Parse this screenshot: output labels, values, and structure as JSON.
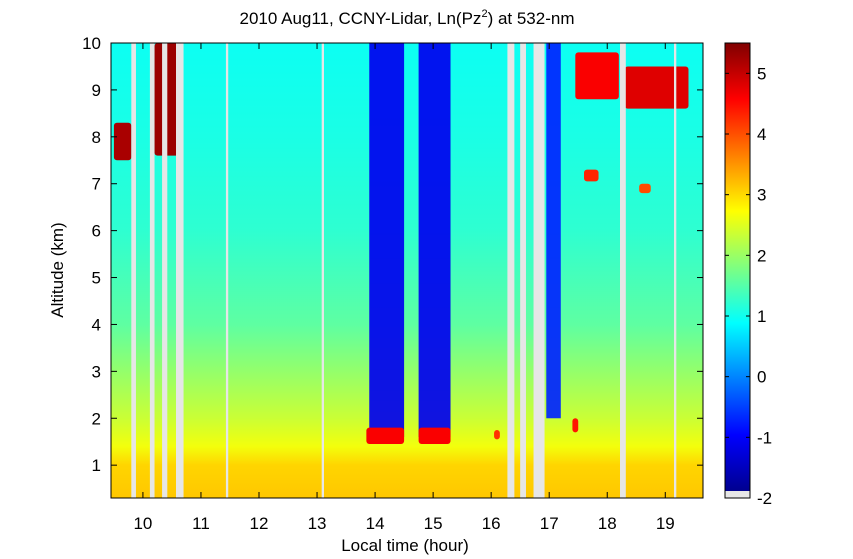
{
  "chart_data": {
    "type": "heatmap",
    "title_main": "2010 Aug11, CCNY-Lidar, Ln(Pz",
    "title_sup": "2",
    "title_tail": ") at 532-nm",
    "xlabel": "Local time (hour)",
    "ylabel": "Altitude (km)",
    "xlim": [
      9.45,
      19.65
    ],
    "ylim": [
      0.3,
      10
    ],
    "xticks": [
      10,
      11,
      12,
      13,
      14,
      15,
      16,
      17,
      18,
      19
    ],
    "yticks": [
      1,
      2,
      3,
      4,
      5,
      6,
      7,
      8,
      9,
      10
    ],
    "colorbar": {
      "range": [
        -2,
        5.5
      ],
      "ticks": [
        -2,
        -1,
        0,
        1,
        2,
        3,
        4,
        5
      ]
    },
    "background_profile": [
      {
        "alt": 0.3,
        "value": 3.1
      },
      {
        "alt": 1.0,
        "value": 3.0
      },
      {
        "alt": 1.4,
        "value": 2.6
      },
      {
        "alt": 2.0,
        "value": 2.3
      },
      {
        "alt": 3.0,
        "value": 1.9
      },
      {
        "alt": 4.0,
        "value": 1.5
      },
      {
        "alt": 6.0,
        "value": 1.15
      },
      {
        "alt": 8.0,
        "value": 1.0
      },
      {
        "alt": 10.0,
        "value": 0.9
      }
    ],
    "data_gaps": [
      {
        "start": 9.8,
        "end": 9.88
      },
      {
        "start": 10.12,
        "end": 10.2
      },
      {
        "start": 10.33,
        "end": 10.42
      },
      {
        "start": 10.57,
        "end": 10.7
      },
      {
        "start": 11.43,
        "end": 11.47
      },
      {
        "start": 13.08,
        "end": 13.12
      },
      {
        "start": 16.28,
        "end": 16.4
      },
      {
        "start": 16.5,
        "end": 16.6
      },
      {
        "start": 16.73,
        "end": 16.92
      },
      {
        "start": 18.22,
        "end": 18.32
      },
      {
        "start": 19.15,
        "end": 19.19
      }
    ],
    "low_signal_regions": [
      {
        "start": 13.9,
        "end": 14.5,
        "base_alt": 1.6,
        "value": -1.2
      },
      {
        "start": 14.75,
        "end": 15.3,
        "base_alt": 1.6,
        "value": -1.2
      },
      {
        "start": 16.95,
        "end": 17.2,
        "base_alt": 2.0,
        "value": -0.8
      }
    ],
    "clouds": [
      {
        "x0": 9.5,
        "x1": 9.8,
        "y0": 7.5,
        "y1": 8.3,
        "value": 5.2
      },
      {
        "x0": 10.2,
        "x1": 10.65,
        "y0": 7.6,
        "y1": 10.0,
        "value": 5.3
      },
      {
        "x0": 17.45,
        "x1": 18.2,
        "y0": 8.8,
        "y1": 9.8,
        "value": 4.6
      },
      {
        "x0": 18.3,
        "x1": 19.4,
        "y0": 8.6,
        "y1": 9.5,
        "value": 4.8
      },
      {
        "x0": 17.6,
        "x1": 17.85,
        "y0": 7.05,
        "y1": 7.3,
        "value": 4.3
      },
      {
        "x0": 18.55,
        "x1": 18.75,
        "y0": 6.8,
        "y1": 7.0,
        "value": 4.0
      },
      {
        "x0": 13.85,
        "x1": 14.5,
        "y0": 1.45,
        "y1": 1.8,
        "value": 4.6
      },
      {
        "x0": 14.75,
        "x1": 15.3,
        "y0": 1.45,
        "y1": 1.8,
        "value": 4.6
      },
      {
        "x0": 16.05,
        "x1": 16.15,
        "y0": 1.55,
        "y1": 1.75,
        "value": 4.2
      },
      {
        "x0": 17.4,
        "x1": 17.5,
        "y0": 1.7,
        "y1": 2.0,
        "value": 4.4
      }
    ]
  }
}
